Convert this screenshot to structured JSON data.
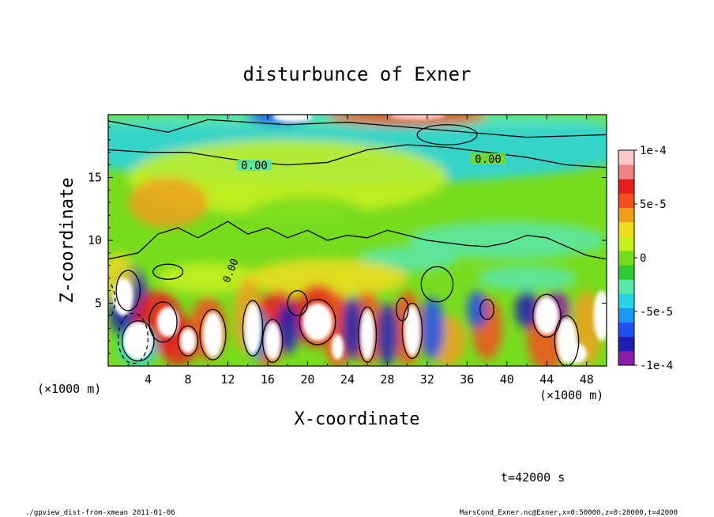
{
  "chart_data": {
    "type": "heatmap",
    "title": "disturbunce of Exner",
    "xlabel": "X-coordinate",
    "ylabel": "Z-coordinate",
    "x_unit": "(×1000 m)",
    "x_unit_right": "(×1000 m)",
    "xlim": [
      0,
      50
    ],
    "ylim": [
      0,
      20
    ],
    "x_ticks": [
      4,
      8,
      12,
      16,
      20,
      24,
      28,
      32,
      36,
      40,
      44,
      48
    ],
    "y_ticks": [
      5,
      10,
      15
    ],
    "colorbar": {
      "range": [
        -0.0001,
        0.0001
      ],
      "labels": [
        "1e-4",
        "5e-5",
        "0",
        "-5e-5",
        "-1e-4"
      ],
      "label_values": [
        0.0001,
        5e-05,
        0,
        -5e-05,
        -0.0001
      ]
    },
    "contour_labels": [
      "0.00",
      "0.00",
      "0.00"
    ],
    "time_label": "t=42000 s",
    "grid": false
  },
  "footer": {
    "left": "./gpview_dist-from-xmean  2011-01-06",
    "right": "MarsCond_Exner.nc@Exner,x=0:50000,z=0:20000,t=42000"
  },
  "colors": {
    "scale": [
      "#8a1ea8",
      "#1e1eb4",
      "#1e50f0",
      "#1e96f0",
      "#28d2e6",
      "#5ae6aa",
      "#32c832",
      "#78dc1e",
      "#c8f01e",
      "#f0dc1e",
      "#f0a01e",
      "#f0501e",
      "#e61e1e",
      "#f08282",
      "#ffc8c8"
    ]
  }
}
